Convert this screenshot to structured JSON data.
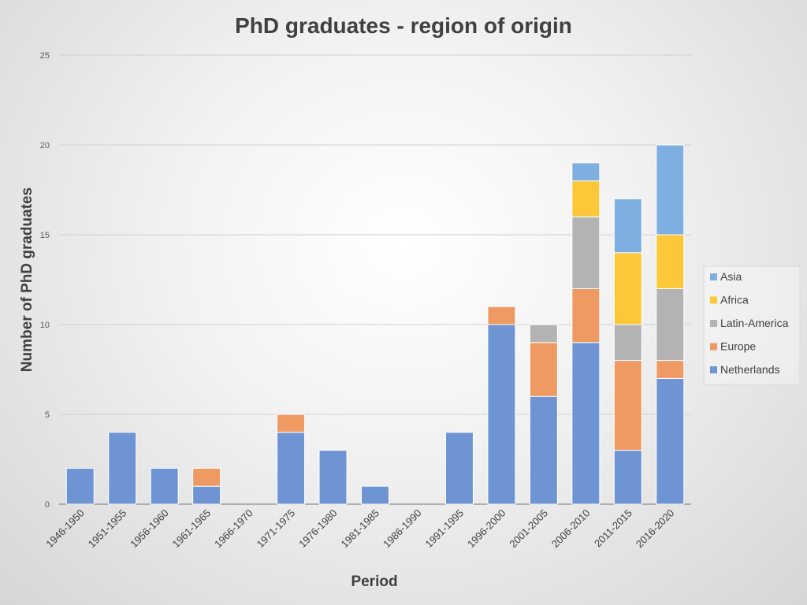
{
  "chart_data": {
    "type": "bar",
    "stacked": true,
    "title": "PhD graduates - region of origin",
    "xlabel": "Period",
    "ylabel": "Number of PhD graduates",
    "ylim": [
      0,
      25
    ],
    "yticks": [
      "0",
      "5",
      "10",
      "15",
      "20",
      "25"
    ],
    "grid": true,
    "legend_position": "right",
    "categories": [
      "1946-1950",
      "1951-1955",
      "1956-1960",
      "1961-1965",
      "1966-1970",
      "1971-1975",
      "1976-1980",
      "1981-1985",
      "1986-1990",
      "1991-1995",
      "1996-2000",
      "2001-2005",
      "2006-2010",
      "2011-2015",
      "2016-2020"
    ],
    "series": [
      {
        "name": "Netherlands",
        "color": "#6f94d3",
        "values": [
          2,
          4,
          2,
          1,
          0,
          4,
          3,
          1,
          0,
          4,
          10,
          6,
          9,
          3,
          7
        ]
      },
      {
        "name": "Europe",
        "color": "#ee9a62",
        "values": [
          0,
          0,
          0,
          1,
          0,
          1,
          0,
          0,
          0,
          0,
          1,
          3,
          3,
          5,
          1
        ]
      },
      {
        "name": "Latin-America",
        "color": "#b3b3b3",
        "values": [
          0,
          0,
          0,
          0,
          0,
          0,
          0,
          0,
          0,
          0,
          0,
          1,
          4,
          2,
          4
        ]
      },
      {
        "name": "Africa",
        "color": "#fcc83a",
        "values": [
          0,
          0,
          0,
          0,
          0,
          0,
          0,
          0,
          0,
          0,
          0,
          0,
          2,
          4,
          3
        ]
      },
      {
        "name": "Asia",
        "color": "#7faee0",
        "values": [
          0,
          0,
          0,
          0,
          0,
          0,
          0,
          0,
          0,
          0,
          0,
          0,
          1,
          3,
          5
        ]
      }
    ],
    "legend_order": [
      "Asia",
      "Africa",
      "Latin-America",
      "Europe",
      "Netherlands"
    ]
  }
}
